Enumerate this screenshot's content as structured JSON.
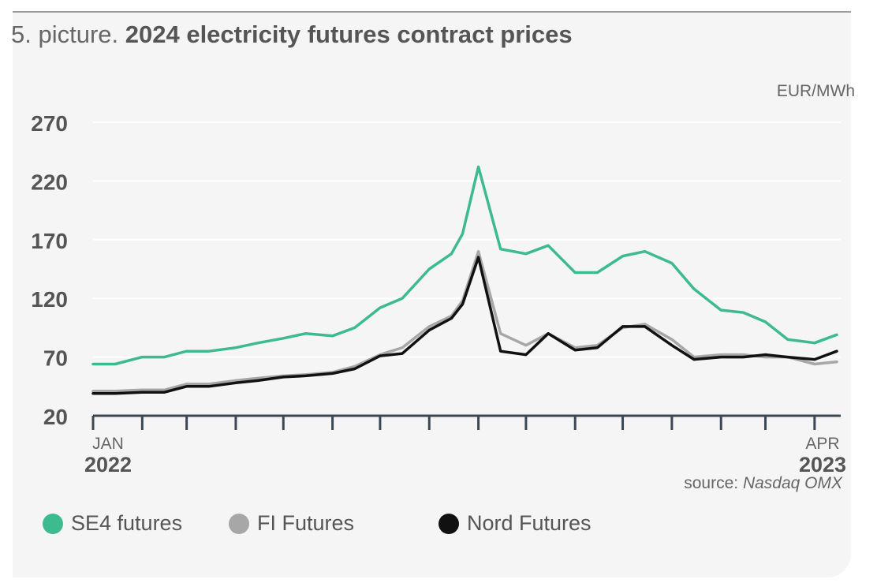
{
  "title": {
    "prefix": "5. picture.",
    "main": "2024 electricity futures contract prices"
  },
  "unit": "EUR/MWh",
  "source": {
    "prefix": "source:",
    "name": "Nasdaq OMX"
  },
  "colors": {
    "se4": "#3dbb8f",
    "fi": "#a7a7a7",
    "nord": "#111111",
    "grid": "#ffffff",
    "axis": "#3b4752",
    "text": "#555555"
  },
  "legend": [
    {
      "label": "SE4 futures",
      "color": "#3dbb8f"
    },
    {
      "label": "FI Futures",
      "color": "#a7a7a7"
    },
    {
      "label": "Nord Futures",
      "color": "#111111"
    }
  ],
  "chart_data": {
    "type": "line",
    "title": "2024 electricity futures contract prices",
    "ylabel": "EUR/MWh",
    "ylim": [
      20,
      270
    ],
    "yticks": [
      20,
      70,
      120,
      170,
      220,
      270
    ],
    "xlim": [
      "2022-01",
      "2023-04"
    ],
    "xticks": [
      {
        "month": "JAN",
        "year": "2022"
      },
      {
        "month": "APR",
        "year": "2023"
      }
    ],
    "grid": true,
    "legend_position": "bottom",
    "x": [
      "2022-01-01",
      "2022-01-15",
      "2022-02-01",
      "2022-02-15",
      "2022-03-01",
      "2022-03-15",
      "2022-04-01",
      "2022-04-15",
      "2022-05-01",
      "2022-05-15",
      "2022-06-01",
      "2022-06-15",
      "2022-07-01",
      "2022-07-15",
      "2022-08-01",
      "2022-08-15",
      "2022-08-22",
      "2022-09-01",
      "2022-09-15",
      "2022-10-01",
      "2022-10-15",
      "2022-11-01",
      "2022-11-15",
      "2022-12-01",
      "2022-12-15",
      "2023-01-01",
      "2023-01-15",
      "2023-02-01",
      "2023-02-15",
      "2023-03-01",
      "2023-03-15",
      "2023-04-01",
      "2023-04-15"
    ],
    "series": [
      {
        "name": "SE4 futures",
        "values": [
          64,
          64,
          70,
          70,
          75,
          75,
          78,
          82,
          86,
          90,
          88,
          95,
          112,
          120,
          145,
          158,
          175,
          232,
          162,
          158,
          165,
          142,
          142,
          156,
          160,
          150,
          128,
          110,
          108,
          100,
          85,
          82,
          89
        ]
      },
      {
        "name": "FI Futures",
        "values": [
          41,
          41,
          42,
          42,
          47,
          47,
          50,
          52,
          54,
          55,
          57,
          62,
          72,
          78,
          96,
          105,
          118,
          160,
          90,
          80,
          90,
          78,
          80,
          95,
          98,
          85,
          70,
          72,
          72,
          70,
          70,
          64,
          66
        ]
      },
      {
        "name": "Nord Futures",
        "values": [
          39,
          39,
          40,
          40,
          45,
          45,
          48,
          50,
          53,
          54,
          56,
          60,
          71,
          73,
          93,
          103,
          115,
          155,
          75,
          72,
          90,
          76,
          78,
          96,
          96,
          80,
          68,
          70,
          70,
          72,
          70,
          68,
          75
        ]
      }
    ]
  }
}
